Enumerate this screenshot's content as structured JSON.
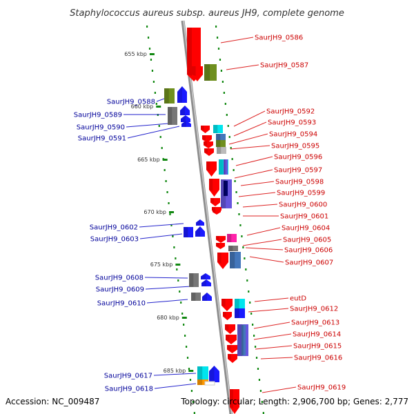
{
  "title": "Staphylococcus aureus subsp. aureus JH9, complete genome",
  "footer": {
    "accession": "Accession: NC_009487",
    "summary": "Topology: circular; Length: 2,906,700 bp; Genes: 2,777"
  },
  "colors": {
    "forward": "#ff0000",
    "reverse": "#1a1aff",
    "label_forward": "#cc0000",
    "label_reverse": "#00009a",
    "scale_green": "#118811",
    "backbone": "#8d8d8d",
    "olive": "#6f8f1f",
    "cyan": "#00e5ee",
    "gray": "#777777",
    "light_gray": "#bbbbbb",
    "purple": "#6655dd",
    "navy": "#000066",
    "magenta": "#ff22aa",
    "steel": "#4477bb",
    "orange": "#ff9900"
  },
  "scale": [
    "655 kbp",
    "660 kbp",
    "665 kbp",
    "670 kbp",
    "675 kbp",
    "680 kbp",
    "685 kbp"
  ],
  "genes": [
    {
      "label": "SaurJH9_0586",
      "strand": "forward"
    },
    {
      "label": "SaurJH9_0587",
      "strand": "forward"
    },
    {
      "label": "SaurJH9_0588",
      "strand": "reverse"
    },
    {
      "label": "SaurJH9_0589",
      "strand": "reverse"
    },
    {
      "label": "SaurJH9_0590",
      "strand": "reverse"
    },
    {
      "label": "SaurJH9_0591",
      "strand": "reverse"
    },
    {
      "label": "SaurJH9_0592",
      "strand": "forward"
    },
    {
      "label": "SaurJH9_0593",
      "strand": "forward"
    },
    {
      "label": "SaurJH9_0594",
      "strand": "forward"
    },
    {
      "label": "SaurJH9_0595",
      "strand": "forward"
    },
    {
      "label": "SaurJH9_0596",
      "strand": "forward"
    },
    {
      "label": "SaurJH9_0597",
      "strand": "forward"
    },
    {
      "label": "SaurJH9_0598",
      "strand": "forward"
    },
    {
      "label": "SaurJH9_0599",
      "strand": "forward"
    },
    {
      "label": "SaurJH9_0600",
      "strand": "forward"
    },
    {
      "label": "SaurJH9_0601",
      "strand": "forward"
    },
    {
      "label": "SaurJH9_0602",
      "strand": "reverse"
    },
    {
      "label": "SaurJH9_0603",
      "strand": "reverse"
    },
    {
      "label": "SaurJH9_0604",
      "strand": "forward"
    },
    {
      "label": "SaurJH9_0605",
      "strand": "forward"
    },
    {
      "label": "SaurJH9_0606",
      "strand": "forward"
    },
    {
      "label": "SaurJH9_0607",
      "strand": "forward"
    },
    {
      "label": "SaurJH9_0608",
      "strand": "reverse"
    },
    {
      "label": "SaurJH9_0609",
      "strand": "reverse"
    },
    {
      "label": "SaurJH9_0610",
      "strand": "reverse"
    },
    {
      "label": "eutD",
      "strand": "forward"
    },
    {
      "label": "SaurJH9_0612",
      "strand": "forward"
    },
    {
      "label": "SaurJH9_0613",
      "strand": "forward"
    },
    {
      "label": "SaurJH9_0614",
      "strand": "forward"
    },
    {
      "label": "SaurJH9_0615",
      "strand": "forward"
    },
    {
      "label": "SaurJH9_0616",
      "strand": "forward"
    },
    {
      "label": "SaurJH9_0617",
      "strand": "reverse"
    },
    {
      "label": "SaurJH9_0618",
      "strand": "reverse"
    },
    {
      "label": "SaurJH9_0619",
      "strand": "forward"
    }
  ]
}
